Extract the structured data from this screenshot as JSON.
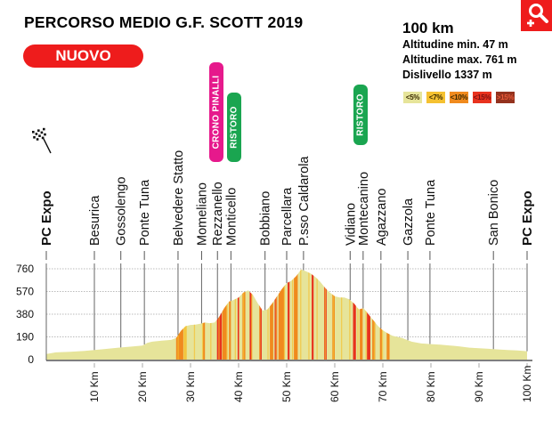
{
  "header": {
    "title": "PERCORSO MEDIO G.F. SCOTT 2019",
    "badge": "NUOVO",
    "zoom_button": "zoom-in-icon"
  },
  "stats": {
    "distance": "100 km",
    "alt_min": "Altitudine min. 47 m",
    "alt_max": "Altitudine max. 761 m",
    "elevation_gain": "Dislivello 1337 m"
  },
  "legend": [
    {
      "label": "<5%",
      "color": "#e6e49a"
    },
    {
      "label": "<7%",
      "color": "#f5c131"
    },
    {
      "label": "<10%",
      "color": "#f08a1e"
    },
    {
      "label": "<15%",
      "color": "#e8321e"
    },
    {
      "label": ">15%",
      "color": "#94321e"
    }
  ],
  "markers": [
    {
      "label": "CRONO PINALLI",
      "color": "#e6198c",
      "km": 35.2
    },
    {
      "label": "RISTORO",
      "color": "#1aa550",
      "km": 38.9
    },
    {
      "label": "RISTORO",
      "color": "#1aa550",
      "km": 65.2
    }
  ],
  "chart_data": {
    "type": "area",
    "title": "PERCORSO MEDIO G.F. SCOTT 2019",
    "xlabel": "",
    "ylabel": "",
    "xlim": [
      0,
      100
    ],
    "ylim": [
      0,
      760
    ],
    "x_ticks": [
      10,
      20,
      30,
      40,
      50,
      60,
      70,
      80,
      90,
      100
    ],
    "x_tick_labels": [
      "10 Km",
      "20 Km",
      "30 Km",
      "40 Km",
      "50 Km",
      "60 Km",
      "70 Km",
      "80 Km",
      "90 Km",
      "100 Km"
    ],
    "y_ticks": [
      0,
      190,
      380,
      570,
      760
    ],
    "y_tick_labels": [
      "0",
      "190",
      "380",
      "570",
      "760"
    ],
    "grid": "horizontal-dotted",
    "legend_position": "top-right",
    "places": [
      {
        "name": "PC Expo",
        "km": 0,
        "bold": true,
        "flag": true
      },
      {
        "name": "Besurica",
        "km": 10
      },
      {
        "name": "Gossolengo",
        "km": 15.5
      },
      {
        "name": "Ponte Tuna",
        "km": 20.4
      },
      {
        "name": "Belvedere Statto",
        "km": 27.4
      },
      {
        "name": "Momeliano",
        "km": 32.3
      },
      {
        "name": "Rezzanello",
        "km": 35.6
      },
      {
        "name": "Monticello",
        "km": 38.4
      },
      {
        "name": "Bobbiano",
        "km": 45.5
      },
      {
        "name": "Parcellara",
        "km": 50
      },
      {
        "name": "P.sso Caldarola",
        "km": 53.5
      },
      {
        "name": "Vidiano",
        "km": 63.2
      },
      {
        "name": "Montecanino",
        "km": 65.9
      },
      {
        "name": "Agazzano",
        "km": 69.6
      },
      {
        "name": "Gazzola",
        "km": 75.2
      },
      {
        "name": "Ponte Tuna",
        "km": 79.8
      },
      {
        "name": "San Bonico",
        "km": 93
      },
      {
        "name": "PC Expo",
        "km": 100,
        "bold": true
      }
    ],
    "series": [
      {
        "name": "Altitudine (m)",
        "x": [
          0,
          2,
          5,
          8,
          10,
          12,
          15,
          18,
          20,
          21,
          22,
          24,
          26,
          27,
          28,
          29,
          30,
          31,
          32,
          33,
          34,
          35,
          36,
          37,
          38,
          39,
          40,
          41,
          42,
          43,
          44,
          45,
          46,
          47,
          48,
          49,
          50,
          51,
          52,
          53,
          54,
          55,
          56,
          57,
          58,
          59,
          60,
          61,
          62,
          63,
          64,
          65,
          66,
          67,
          68,
          69,
          70,
          71,
          72,
          74,
          76,
          78,
          80,
          82,
          84,
          86,
          88,
          90,
          92,
          94,
          96,
          98,
          100
        ],
        "y": [
          47,
          60,
          65,
          72,
          80,
          88,
          100,
          110,
          118,
          140,
          150,
          158,
          165,
          180,
          240,
          280,
          290,
          292,
          300,
          310,
          305,
          310,
          360,
          430,
          485,
          500,
          520,
          560,
          580,
          540,
          470,
          410,
          420,
          470,
          530,
          590,
          640,
          660,
          700,
          755,
          740,
          720,
          690,
          650,
          600,
          560,
          530,
          520,
          520,
          505,
          470,
          420,
          430,
          380,
          330,
          280,
          245,
          220,
          200,
          180,
          150,
          135,
          130,
          125,
          118,
          110,
          100,
          95,
          90,
          85,
          80,
          76,
          70
        ]
      }
    ],
    "gradient_bands": [
      {
        "from": 27,
        "to": 28.5,
        "class": "<10%"
      },
      {
        "from": 28.6,
        "to": 29,
        "class": "<7%"
      },
      {
        "from": 32.6,
        "to": 33,
        "class": "<10%"
      },
      {
        "from": 35.5,
        "to": 36.5,
        "class": "<15%"
      },
      {
        "from": 36.6,
        "to": 37.5,
        "class": "<10%"
      },
      {
        "from": 38,
        "to": 38.4,
        "class": "<10%"
      },
      {
        "from": 39.8,
        "to": 40.1,
        "class": "<15%"
      },
      {
        "from": 40.8,
        "to": 41.4,
        "class": "<10%"
      },
      {
        "from": 42.3,
        "to": 42.8,
        "class": "<15%"
      },
      {
        "from": 44.3,
        "to": 44.8,
        "class": "<15%"
      },
      {
        "from": 46.5,
        "to": 47.2,
        "class": "<10%"
      },
      {
        "from": 47.5,
        "to": 48,
        "class": "<15%"
      },
      {
        "from": 48.3,
        "to": 49.5,
        "class": "<10%"
      },
      {
        "from": 50.2,
        "to": 50.6,
        "class": "<15%"
      },
      {
        "from": 51.5,
        "to": 52.3,
        "class": "<10%"
      },
      {
        "from": 55.2,
        "to": 55.6,
        "class": "<15%"
      },
      {
        "from": 57.8,
        "to": 58.3,
        "class": "<15%"
      },
      {
        "from": 59.5,
        "to": 60,
        "class": "<10%"
      },
      {
        "from": 63.8,
        "to": 64.4,
        "class": "<15%"
      },
      {
        "from": 65.2,
        "to": 65.8,
        "class": "<10%"
      },
      {
        "from": 66.7,
        "to": 67.4,
        "class": "<15%"
      },
      {
        "from": 67.8,
        "to": 68.4,
        "class": "<10%"
      },
      {
        "from": 69.4,
        "to": 69.8,
        "class": "<10%"
      },
      {
        "from": 70.8,
        "to": 71.4,
        "class": "<10%"
      }
    ]
  }
}
